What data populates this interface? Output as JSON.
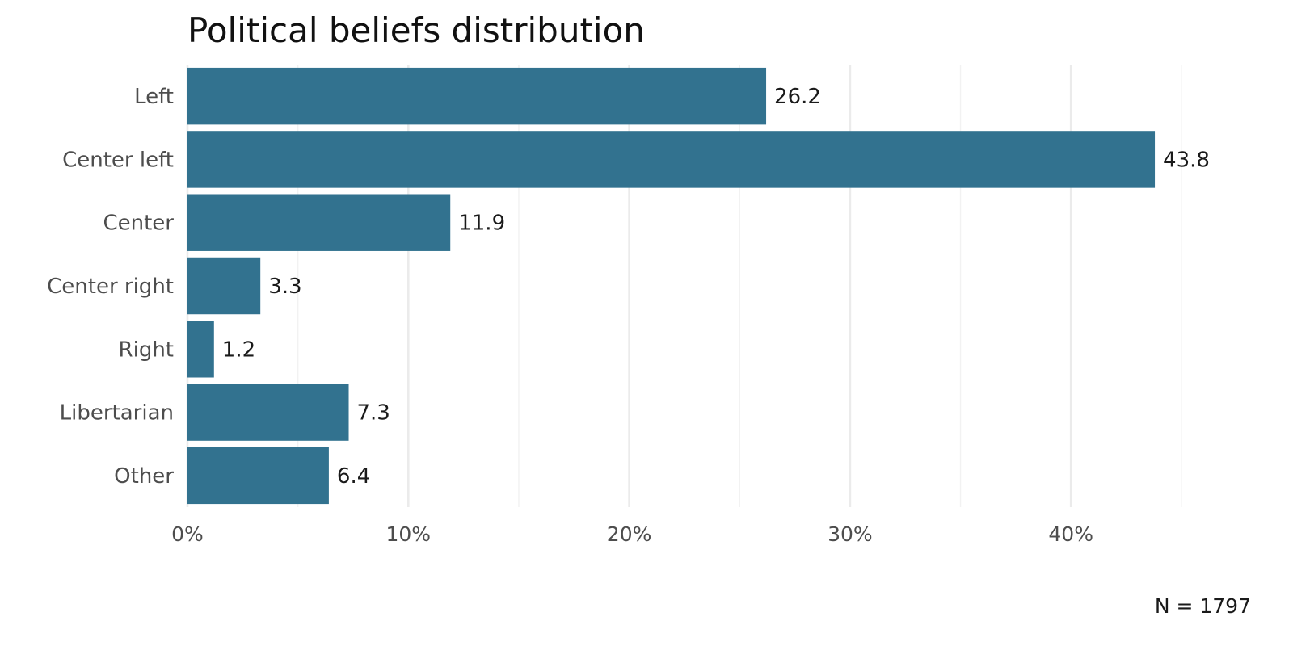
{
  "chart_data": {
    "type": "bar",
    "orientation": "horizontal",
    "title": "Political beliefs distribution",
    "categories": [
      "Left",
      "Center left",
      "Center",
      "Center right",
      "Right",
      "Libertarian",
      "Other"
    ],
    "values": [
      26.2,
      43.8,
      11.9,
      3.3,
      1.2,
      7.3,
      6.4
    ],
    "value_labels": [
      "26.2",
      "43.8",
      "11.9",
      "3.3",
      "1.2",
      "7.3",
      "6.4"
    ],
    "xlabel": "",
    "ylabel": "",
    "xlim": [
      0,
      45
    ],
    "x_ticks": [
      0,
      10,
      20,
      30,
      40
    ],
    "x_tick_labels": [
      "0%",
      "10%",
      "20%",
      "30%",
      "40%"
    ],
    "x_minor_ticks": [
      5,
      15,
      25,
      35,
      45
    ],
    "grid": true,
    "caption": "N = 1797",
    "bar_color": "#32728f"
  }
}
